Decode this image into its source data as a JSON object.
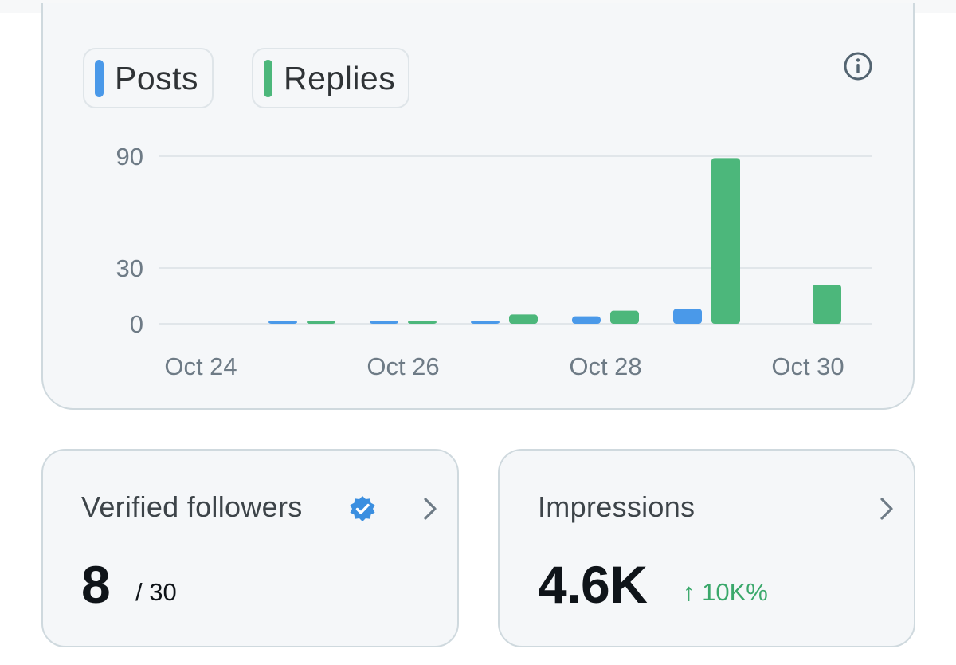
{
  "chart_card": {
    "legend": [
      {
        "label": "Posts",
        "color": "#4a99e9"
      },
      {
        "label": "Replies",
        "color": "#4cb77b"
      }
    ],
    "info_icon": "info-circle-icon"
  },
  "chart_data": {
    "type": "bar",
    "categories": [
      "Oct 24",
      "Oct 25",
      "Oct 26",
      "Oct 27",
      "Oct 28",
      "Oct 29",
      "Oct 30"
    ],
    "x_tick_labels": [
      "Oct 24",
      "Oct 26",
      "Oct 28",
      "Oct 30"
    ],
    "y_tick_labels": [
      "90",
      "30",
      "0"
    ],
    "y_ticks": [
      90,
      30,
      0
    ],
    "ylim": [
      0,
      90
    ],
    "grid": true,
    "legend_position": "top-left",
    "series": [
      {
        "name": "Posts",
        "color": "#4a99e9",
        "values": [
          0,
          1,
          1,
          1,
          4,
          8,
          0
        ]
      },
      {
        "name": "Replies",
        "color": "#4cb77b",
        "values": [
          0,
          0.5,
          0.5,
          5,
          7,
          89,
          21
        ]
      }
    ]
  },
  "followers": {
    "title": "Verified followers",
    "badge_icon": "verified-badge-icon",
    "value": "8",
    "total": "/ 30",
    "chevron_icon": "chevron-right-icon"
  },
  "impressions": {
    "title": "Impressions",
    "value": "4.6K",
    "trend": "↑ 10K%",
    "trend_color": "#3aa86b",
    "chevron_icon": "chevron-right-icon"
  }
}
